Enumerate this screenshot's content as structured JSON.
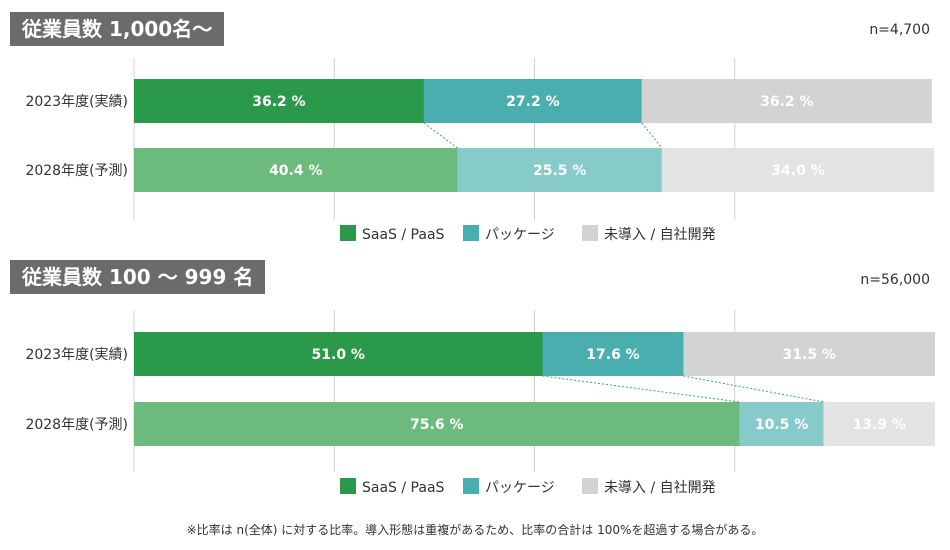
{
  "colors": {
    "saas_2023": "#2a9a4a",
    "saas_2028": "#6cba7c",
    "package_2023": "#4aaeaf",
    "package_2028": "#86cbc9",
    "none_2023": "#d3d3d3",
    "none_2028": "#e3e3e3",
    "grid": "#d0d0d0",
    "connector": "#3aa57a"
  },
  "legend": [
    "SaaS / PaaS",
    "パッケージ",
    "未導入 / 自社開発"
  ],
  "footnote": "※比率は n(全体) に対する比率。導入形態は重複があるため、比率の合計は 100%を超過する場合がある。",
  "chart_data": [
    {
      "type": "bar",
      "title": "従業員数 1,000名〜",
      "sample": "n=4,700",
      "categories": [
        "2023年度(実績)",
        "2028年度(予測)"
      ],
      "series": [
        {
          "name": "SaaS / PaaS",
          "values": [
            36.2,
            40.4
          ],
          "labels": [
            "36.2 %",
            "40.4 %"
          ]
        },
        {
          "name": "パッケージ",
          "values": [
            27.2,
            25.5
          ],
          "labels": [
            "27.2 %",
            "25.5 %"
          ]
        },
        {
          "name": "未導入 / 自社開発",
          "values": [
            36.2,
            34.0
          ],
          "labels": [
            "36.2 %",
            "34.0 %"
          ]
        }
      ],
      "xlim": [
        0,
        100
      ]
    },
    {
      "type": "bar",
      "title": "従業員数 100 〜 999 名",
      "sample": "n=56,000",
      "categories": [
        "2023年度(実績)",
        "2028年度(予測)"
      ],
      "series": [
        {
          "name": "SaaS / PaaS",
          "values": [
            51.0,
            75.6
          ],
          "labels": [
            "51.0 %",
            "75.6 %"
          ]
        },
        {
          "name": "パッケージ",
          "values": [
            17.6,
            10.5
          ],
          "labels": [
            "17.6 %",
            "10.5 %"
          ]
        },
        {
          "name": "未導入 / 自社開発",
          "values": [
            31.5,
            13.9
          ],
          "labels": [
            "31.5 %",
            "13.9 %"
          ]
        }
      ],
      "xlim": [
        0,
        100
      ]
    }
  ]
}
